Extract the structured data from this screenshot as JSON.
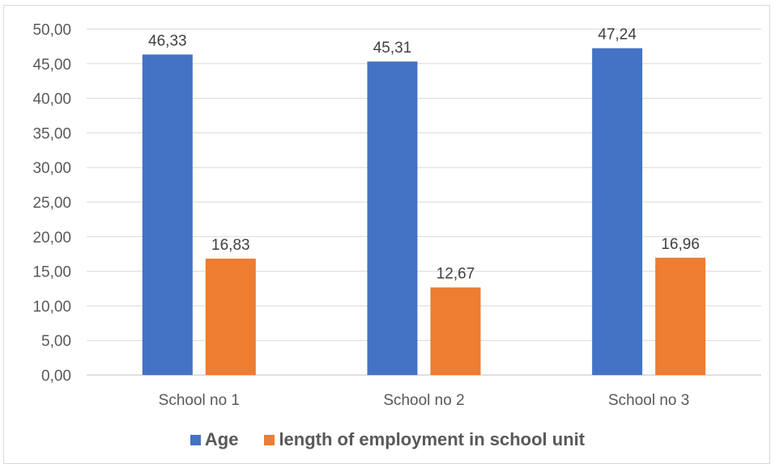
{
  "chart_data": {
    "type": "bar",
    "categories": [
      "School no 1",
      "School no 2",
      "School no 3"
    ],
    "series": [
      {
        "name": "Age",
        "values": [
          46.33,
          45.31,
          47.24
        ],
        "labels": [
          "46,33",
          "45,31",
          "47,24"
        ],
        "color": "#4472c4"
      },
      {
        "name": "length of employment in school unit",
        "values": [
          16.83,
          12.67,
          16.96
        ],
        "labels": [
          "16,83",
          "12,67",
          "16,96"
        ],
        "color": "#ed7d31"
      }
    ],
    "y_ticks": [
      "0,00",
      "5,00",
      "10,00",
      "15,00",
      "20,00",
      "25,00",
      "30,00",
      "35,00",
      "40,00",
      "45,00",
      "50,00"
    ],
    "ylim": [
      0,
      50
    ],
    "grid": true,
    "legend_position": "bottom"
  }
}
